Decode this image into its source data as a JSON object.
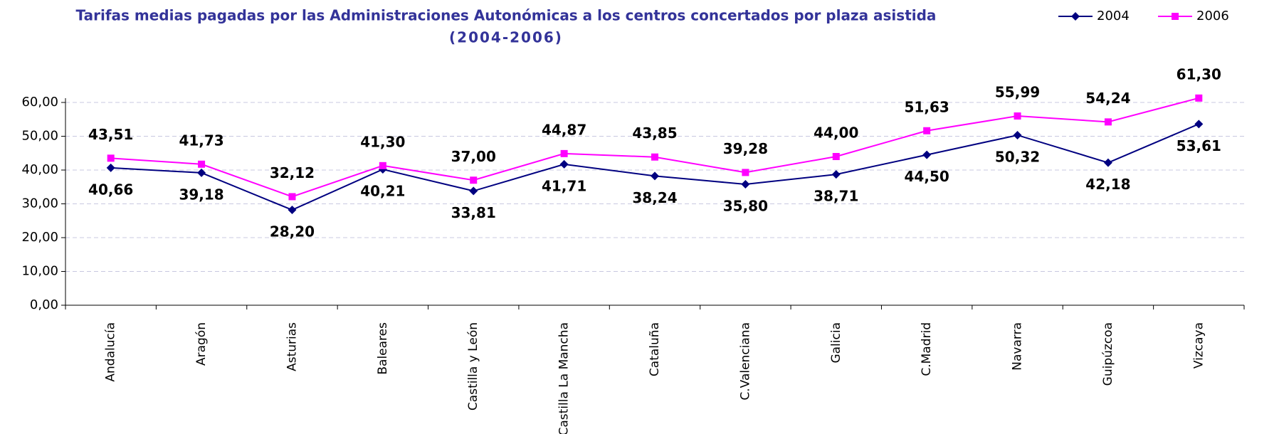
{
  "chart_data": {
    "type": "line",
    "title": [
      "Tarifas medias pagadas por las Administraciones Autonómicas a los centros concertados por plaza asistida",
      "(2004-2006)"
    ],
    "categories": [
      "Andalucía",
      "Aragón",
      "Asturias",
      "Baleares",
      "Castilla y León",
      "Castilla La Mancha",
      "Cataluña",
      "C.Valenciana",
      "Galicia",
      "C.Madrid",
      "Navarra",
      "Guipúzcoa",
      "Vizcaya"
    ],
    "series": [
      {
        "name": "2004",
        "color": "#000080",
        "marker": "diamond",
        "values": [
          40.66,
          39.18,
          28.2,
          40.21,
          33.81,
          41.71,
          38.24,
          35.8,
          38.71,
          44.5,
          50.32,
          42.18,
          53.61
        ],
        "value_labels": [
          "40,66",
          "39,18",
          "28,20",
          "40,21",
          "33,81",
          "41,71",
          "38,24",
          "35,80",
          "38,71",
          "44,50",
          "50,32",
          "42,18",
          "53,61"
        ]
      },
      {
        "name": "2006",
        "color": "#ff00ff",
        "marker": "square",
        "values": [
          43.51,
          41.73,
          32.12,
          41.3,
          37.0,
          44.87,
          43.85,
          39.28,
          44.0,
          51.63,
          55.99,
          54.24,
          61.3
        ],
        "value_labels": [
          "43,51",
          "41,73",
          "32,12",
          "41,30",
          "37,00",
          "44,87",
          "43,85",
          "39,28",
          "44,00",
          "51,63",
          "55,99",
          "54,24",
          "61,30"
        ]
      }
    ],
    "ylim": [
      0,
      60
    ],
    "yticks": [
      {
        "value": 0,
        "label": "0,00"
      },
      {
        "value": 10,
        "label": "10,00"
      },
      {
        "value": 20,
        "label": "20,00"
      },
      {
        "value": 30,
        "label": "30,00"
      },
      {
        "value": 40,
        "label": "40,00"
      },
      {
        "value": 50,
        "label": "50,00"
      },
      {
        "value": 60,
        "label": "60,00"
      }
    ],
    "grid": true,
    "legend": "top-right"
  }
}
